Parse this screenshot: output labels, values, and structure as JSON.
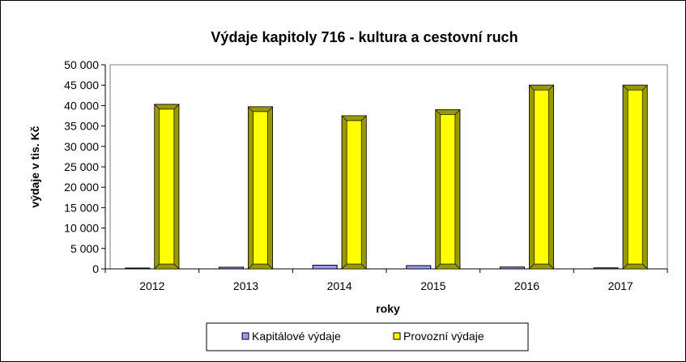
{
  "chart_data": {
    "type": "bar",
    "title": "Výdaje kapitoly 716 - kultura a cestovní ruch",
    "xlabel": "roky",
    "ylabel": "výdaje  v tis. Kč",
    "categories": [
      "2012",
      "2013",
      "2014",
      "2015",
      "2016",
      "2017"
    ],
    "ylim": [
      0,
      50000
    ],
    "yticks": [
      0,
      5000,
      10000,
      15000,
      20000,
      25000,
      30000,
      35000,
      40000,
      45000,
      50000
    ],
    "ytick_labels": [
      "0",
      "5 000",
      "10 000",
      "15 000",
      "20 000",
      "25 000",
      "30 000",
      "35 000",
      "40 000",
      "45 000",
      "50 000"
    ],
    "grid": false,
    "legend_position": "bottom",
    "series": [
      {
        "name": "Kapitálové výdaje",
        "color": "#9999FF",
        "values": [
          200,
          400,
          900,
          800,
          450,
          250
        ]
      },
      {
        "name": "Provozní výdaje",
        "color": "#FFFF00",
        "values": [
          40300,
          39700,
          37500,
          39000,
          45000,
          45000
        ]
      }
    ]
  }
}
